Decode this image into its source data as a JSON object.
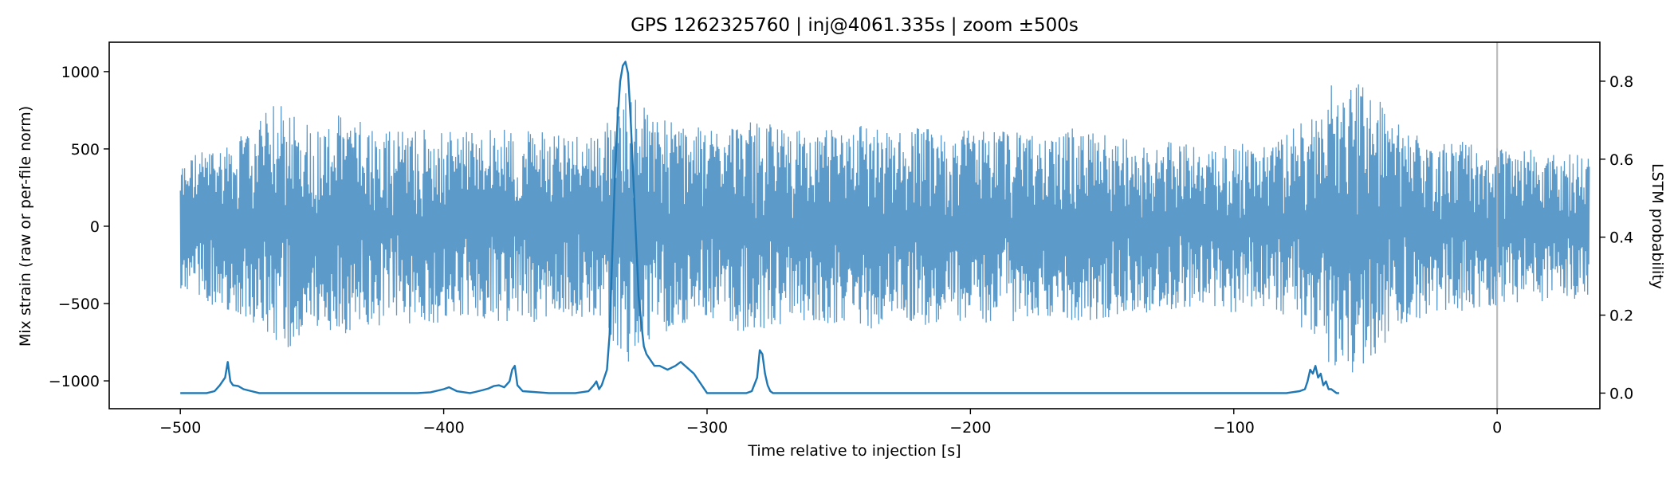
{
  "chart_data": {
    "type": "line",
    "title": "GPS 1262325760 | inj@4061.335s | zoom ±500s",
    "xlabel": "Time relative to injection [s]",
    "ylabel_left": "Mix strain (raw or per-file norm)",
    "ylabel_right": "LSTM probability",
    "xlim": [
      -527,
      39
    ],
    "ylim_left": [
      -1180,
      1190
    ],
    "ylim_right": [
      -0.04,
      0.9
    ],
    "xticks": [
      -500,
      -400,
      -300,
      -200,
      -100,
      0
    ],
    "xtick_labels": [
      "−500",
      "−400",
      "−300",
      "−200",
      "−100",
      "0"
    ],
    "yticks_left": [
      -1000,
      -500,
      0,
      500,
      1000
    ],
    "ytick_labels_left": [
      "−1000",
      "−500",
      "0",
      "500",
      "1000"
    ],
    "yticks_right": [
      0.0,
      0.2,
      0.4,
      0.6,
      0.8
    ],
    "ytick_labels_right": [
      "0.0",
      "0.2",
      "0.4",
      "0.6",
      "0.8"
    ],
    "grid": false,
    "colors": {
      "strain": "#4a8fc4",
      "probability": "#1f77b4",
      "marker": "#b0b0b0"
    },
    "marker_x": 0,
    "series": [
      {
        "axis": "left",
        "x_range": [
          -500,
          35
        ],
        "envelope": [
          [
            -500,
            400
          ],
          [
            -495,
            470
          ],
          [
            -490,
            500
          ],
          [
            -485,
            520
          ],
          [
            -480,
            560
          ],
          [
            -475,
            600
          ],
          [
            -470,
            700
          ],
          [
            -465,
            780
          ],
          [
            -460,
            830
          ],
          [
            -455,
            720
          ],
          [
            -450,
            660
          ],
          [
            -445,
            640
          ],
          [
            -440,
            720
          ],
          [
            -430,
            680
          ],
          [
            -420,
            650
          ],
          [
            -410,
            640
          ],
          [
            -400,
            630
          ],
          [
            -390,
            620
          ],
          [
            -380,
            640
          ],
          [
            -370,
            620
          ],
          [
            -360,
            620
          ],
          [
            -350,
            610
          ],
          [
            -340,
            620
          ],
          [
            -330,
            900
          ],
          [
            -320,
            720
          ],
          [
            -310,
            680
          ],
          [
            -300,
            620
          ],
          [
            -290,
            680
          ],
          [
            -280,
            670
          ],
          [
            -270,
            640
          ],
          [
            -260,
            610
          ],
          [
            -250,
            640
          ],
          [
            -240,
            690
          ],
          [
            -230,
            600
          ],
          [
            -220,
            650
          ],
          [
            -210,
            620
          ],
          [
            -200,
            620
          ],
          [
            -190,
            640
          ],
          [
            -180,
            600
          ],
          [
            -170,
            590
          ],
          [
            -160,
            640
          ],
          [
            -150,
            600
          ],
          [
            -140,
            560
          ],
          [
            -130,
            560
          ],
          [
            -120,
            540
          ],
          [
            -110,
            520
          ],
          [
            -100,
            560
          ],
          [
            -90,
            520
          ],
          [
            -80,
            600
          ],
          [
            -70,
            720
          ],
          [
            -60,
            1000
          ],
          [
            -50,
            950
          ],
          [
            -40,
            700
          ],
          [
            -30,
            600
          ],
          [
            -20,
            560
          ],
          [
            -10,
            540
          ],
          [
            0,
            520
          ],
          [
            10,
            500
          ],
          [
            20,
            480
          ],
          [
            30,
            470
          ],
          [
            35,
            460
          ]
        ]
      },
      {
        "axis": "right",
        "x": [
          -500,
          -490,
          -487,
          -485,
          -484,
          -483,
          -482,
          -481,
          -480,
          -478,
          -476,
          -473,
          -470,
          -460,
          -450,
          -440,
          -430,
          -420,
          -410,
          -405,
          -400,
          -398,
          -395,
          -390,
          -388,
          -385,
          -383,
          -381,
          -379,
          -377,
          -375,
          -374,
          -373,
          -372,
          -370,
          -360,
          -350,
          -345,
          -343,
          -342,
          -341,
          -340,
          -338,
          -337,
          -336,
          -335,
          -334,
          -333,
          -332,
          -331,
          -330,
          -329,
          -328,
          -327,
          -326,
          -325,
          -324,
          -323,
          -322,
          -321,
          -320,
          -318,
          -315,
          -312,
          -310,
          -305,
          -300,
          -299,
          -297,
          -295,
          -285,
          -283,
          -281,
          -280,
          -279,
          -278,
          -277,
          -276,
          -275,
          -270,
          -260,
          -200,
          -150,
          -120,
          -100,
          -90,
          -80,
          -78,
          -75,
          -73,
          -72,
          -71,
          -70,
          -69,
          -68,
          -67,
          -66,
          -65,
          -64,
          -63,
          -61,
          -60
        ],
        "y": [
          0.0,
          0.0,
          0.005,
          0.02,
          0.03,
          0.04,
          0.08,
          0.03,
          0.02,
          0.018,
          0.01,
          0.005,
          0.0,
          0.0,
          0.0,
          0.0,
          0.0,
          0.0,
          0.0,
          0.002,
          0.01,
          0.015,
          0.005,
          0.0,
          0.003,
          0.008,
          0.012,
          0.018,
          0.02,
          0.015,
          0.03,
          0.06,
          0.07,
          0.02,
          0.005,
          0.0,
          0.0,
          0.005,
          0.02,
          0.03,
          0.01,
          0.02,
          0.06,
          0.15,
          0.35,
          0.55,
          0.7,
          0.8,
          0.84,
          0.85,
          0.82,
          0.7,
          0.55,
          0.4,
          0.25,
          0.18,
          0.12,
          0.1,
          0.09,
          0.08,
          0.07,
          0.07,
          0.06,
          0.07,
          0.08,
          0.05,
          0.0,
          0.0,
          0.0,
          0.0,
          0.0,
          0.005,
          0.04,
          0.11,
          0.1,
          0.05,
          0.02,
          0.005,
          0.0,
          0.0,
          0.0,
          0.0,
          0.0,
          0.0,
          0.0,
          0.0,
          0.0,
          0.002,
          0.005,
          0.01,
          0.03,
          0.06,
          0.05,
          0.07,
          0.04,
          0.05,
          0.02,
          0.03,
          0.01,
          0.01,
          0.0,
          0.0
        ]
      }
    ]
  }
}
